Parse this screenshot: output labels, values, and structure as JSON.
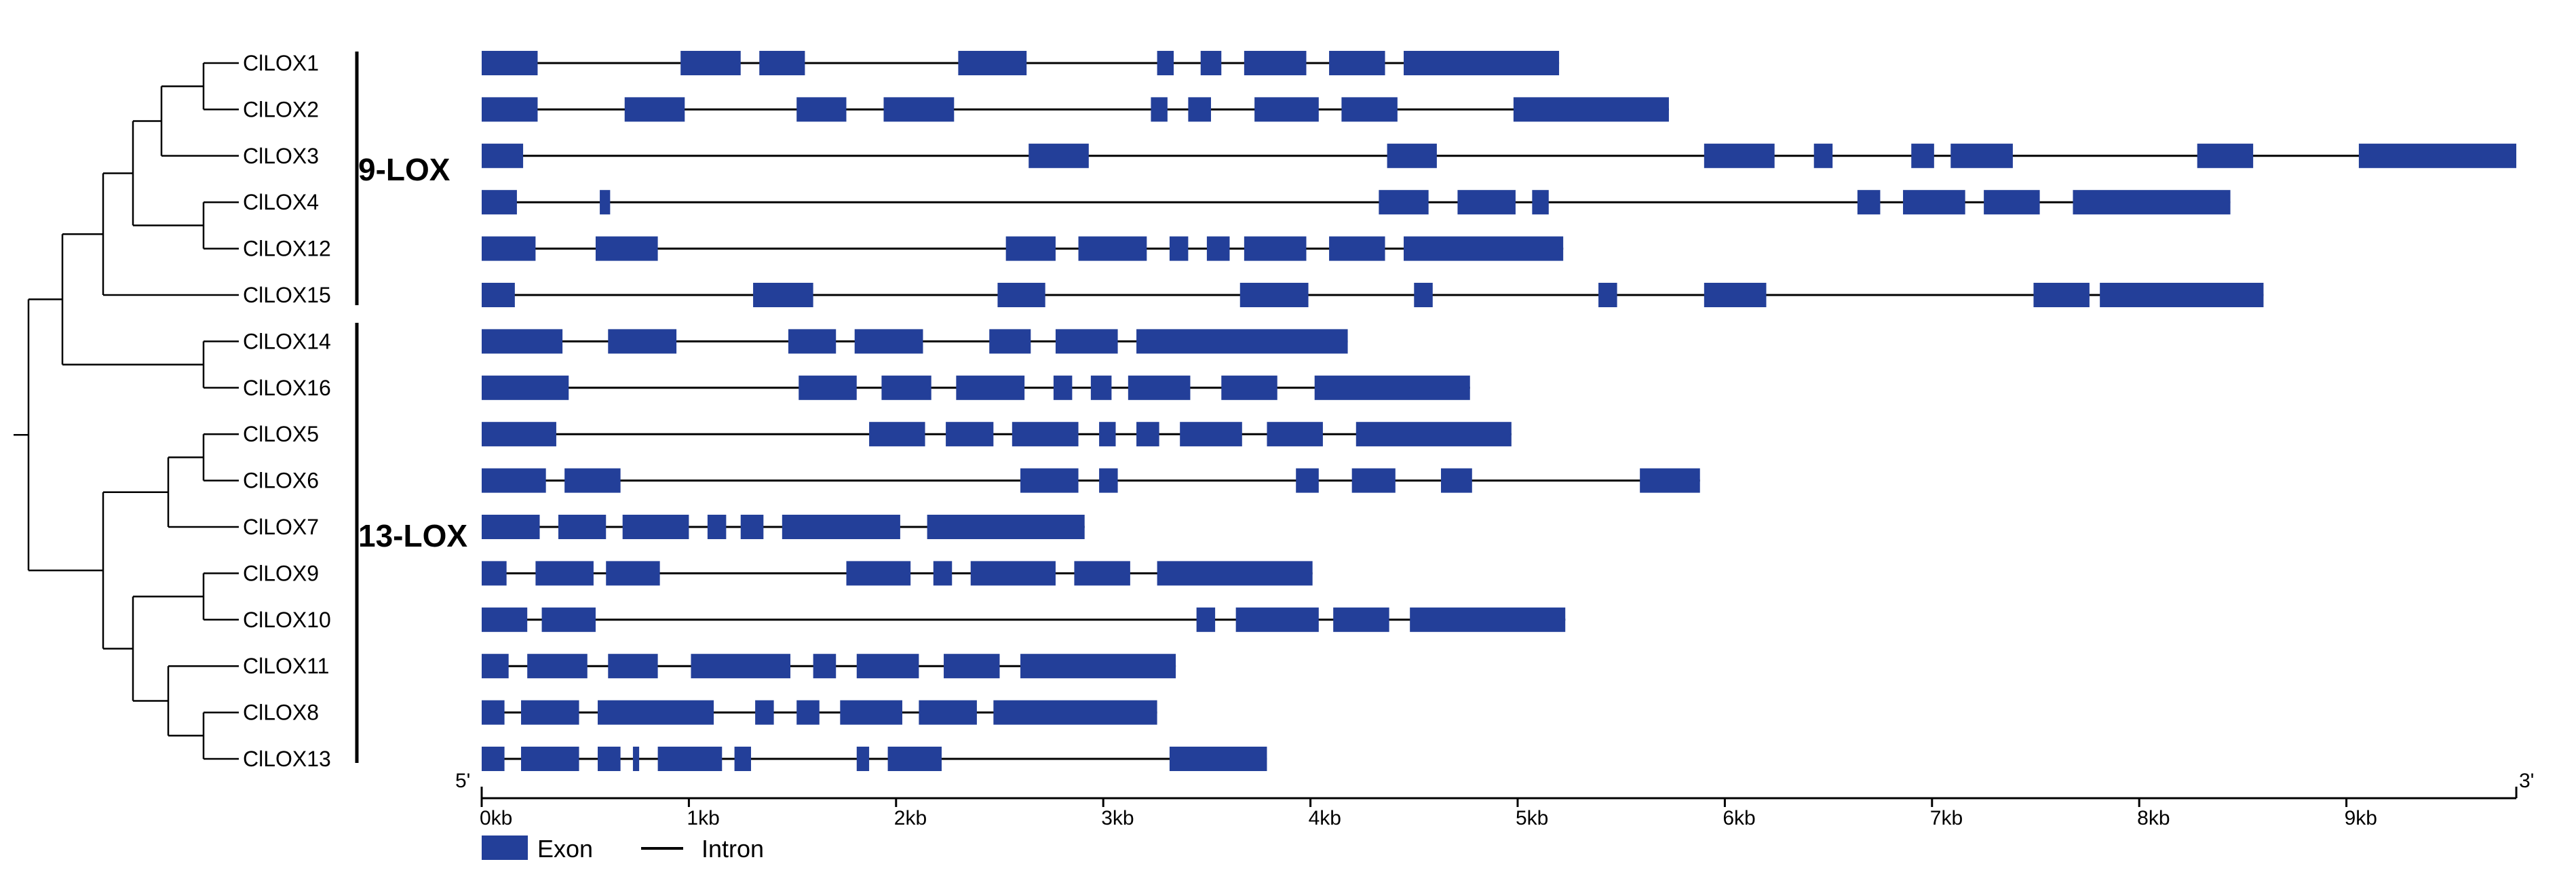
{
  "groups": [
    {
      "label": "9-LOX"
    },
    {
      "label": "13-LOX"
    }
  ],
  "genes": [
    {
      "name": "ClLOX1",
      "exons_kb": [
        [
          0,
          0.27
        ],
        [
          0.96,
          1.25
        ],
        [
          1.34,
          1.56
        ],
        [
          2.3,
          2.63
        ],
        [
          3.26,
          3.34
        ],
        [
          3.47,
          3.57
        ],
        [
          3.68,
          3.98
        ],
        [
          4.09,
          4.36
        ],
        [
          4.45,
          5.2
        ]
      ]
    },
    {
      "name": "ClLOX2",
      "exons_kb": [
        [
          0,
          0.27
        ],
        [
          0.69,
          0.98
        ],
        [
          1.52,
          1.76
        ],
        [
          1.94,
          2.28
        ],
        [
          3.23,
          3.31
        ],
        [
          3.41,
          3.52
        ],
        [
          3.73,
          4.04
        ],
        [
          4.15,
          4.42
        ],
        [
          4.98,
          5.73
        ]
      ]
    },
    {
      "name": "ClLOX3",
      "exons_kb": [
        [
          0,
          0.2
        ],
        [
          2.64,
          2.93
        ],
        [
          4.37,
          4.61
        ],
        [
          5.9,
          6.24
        ],
        [
          6.43,
          6.52
        ],
        [
          6.9,
          7.01
        ],
        [
          7.09,
          7.39
        ],
        [
          8.28,
          8.55
        ],
        [
          9.06,
          9.82
        ]
      ]
    },
    {
      "name": "ClLOX4",
      "exons_kb": [
        [
          0,
          0.17
        ],
        [
          0.57,
          0.62
        ],
        [
          4.33,
          4.57
        ],
        [
          4.71,
          4.99
        ],
        [
          5.07,
          5.15
        ],
        [
          6.64,
          6.75
        ],
        [
          6.86,
          7.16
        ],
        [
          7.25,
          7.52
        ],
        [
          7.68,
          8.44
        ]
      ]
    },
    {
      "name": "ClLOX12",
      "exons_kb": [
        [
          0,
          0.26
        ],
        [
          0.55,
          0.85
        ],
        [
          2.53,
          2.77
        ],
        [
          2.88,
          3.21
        ],
        [
          3.32,
          3.41
        ],
        [
          3.5,
          3.61
        ],
        [
          3.68,
          3.98
        ],
        [
          4.09,
          4.36
        ],
        [
          4.45,
          5.22
        ]
      ]
    },
    {
      "name": "ClLOX15",
      "exons_kb": [
        [
          0,
          0.16
        ],
        [
          1.31,
          1.6
        ],
        [
          2.49,
          2.72
        ],
        [
          3.66,
          3.99
        ],
        [
          4.5,
          4.59
        ],
        [
          5.39,
          5.48
        ],
        [
          5.9,
          6.2
        ],
        [
          7.49,
          7.76
        ],
        [
          7.81,
          8.6
        ]
      ]
    },
    {
      "name": "ClLOX14",
      "exons_kb": [
        [
          0,
          0.39
        ],
        [
          0.61,
          0.94
        ],
        [
          1.48,
          1.71
        ],
        [
          1.8,
          2.13
        ],
        [
          2.45,
          2.65
        ],
        [
          2.77,
          3.07
        ],
        [
          3.16,
          4.18
        ]
      ]
    },
    {
      "name": "ClLOX16",
      "exons_kb": [
        [
          0,
          0.42
        ],
        [
          1.53,
          1.81
        ],
        [
          1.93,
          2.17
        ],
        [
          2.29,
          2.62
        ],
        [
          2.76,
          2.85
        ],
        [
          2.94,
          3.04
        ],
        [
          3.12,
          3.42
        ],
        [
          3.57,
          3.84
        ],
        [
          4.02,
          4.77
        ]
      ]
    },
    {
      "name": "ClLOX5",
      "exons_kb": [
        [
          0,
          0.36
        ],
        [
          1.87,
          2.14
        ],
        [
          2.24,
          2.47
        ],
        [
          2.56,
          2.88
        ],
        [
          2.98,
          3.06
        ],
        [
          3.16,
          3.27
        ],
        [
          3.37,
          3.67
        ],
        [
          3.79,
          4.06
        ],
        [
          4.22,
          4.97
        ]
      ]
    },
    {
      "name": "ClLOX6",
      "exons_kb": [
        [
          0,
          0.31
        ],
        [
          0.4,
          0.67
        ],
        [
          2.6,
          2.88
        ],
        [
          2.98,
          3.07
        ],
        [
          3.93,
          4.04
        ],
        [
          4.2,
          4.41
        ],
        [
          4.63,
          4.78
        ],
        [
          5.59,
          5.88
        ]
      ]
    },
    {
      "name": "ClLOX7",
      "exons_kb": [
        [
          0,
          0.28
        ],
        [
          0.37,
          0.6
        ],
        [
          0.68,
          1.0
        ],
        [
          1.09,
          1.18
        ],
        [
          1.25,
          1.36
        ],
        [
          1.45,
          2.02
        ],
        [
          2.15,
          2.91
        ]
      ]
    },
    {
      "name": "ClLOX9",
      "exons_kb": [
        [
          0,
          0.12
        ],
        [
          0.26,
          0.54
        ],
        [
          0.6,
          0.86
        ],
        [
          1.76,
          2.07
        ],
        [
          2.18,
          2.27
        ],
        [
          2.36,
          2.77
        ],
        [
          2.86,
          3.13
        ],
        [
          3.26,
          4.01
        ]
      ]
    },
    {
      "name": "ClLOX10",
      "exons_kb": [
        [
          0,
          0.22
        ],
        [
          0.29,
          0.55
        ],
        [
          3.45,
          3.54
        ],
        [
          3.64,
          4.04
        ],
        [
          4.11,
          4.38
        ],
        [
          4.48,
          5.23
        ]
      ]
    },
    {
      "name": "ClLOX11",
      "exons_kb": [
        [
          0,
          0.13
        ],
        [
          0.22,
          0.51
        ],
        [
          0.61,
          0.85
        ],
        [
          1.01,
          1.49
        ],
        [
          1.6,
          1.71
        ],
        [
          1.81,
          2.11
        ],
        [
          2.23,
          2.5
        ],
        [
          2.6,
          3.35
        ]
      ]
    },
    {
      "name": "ClLOX8",
      "exons_kb": [
        [
          0,
          0.11
        ],
        [
          0.19,
          0.47
        ],
        [
          0.56,
          1.12
        ],
        [
          1.32,
          1.41
        ],
        [
          1.52,
          1.63
        ],
        [
          1.73,
          2.03
        ],
        [
          2.11,
          2.39
        ],
        [
          2.47,
          3.26
        ]
      ]
    },
    {
      "name": "ClLOX13",
      "exons_kb": [
        [
          0,
          0.11
        ],
        [
          0.19,
          0.47
        ],
        [
          0.56,
          0.67
        ],
        [
          0.73,
          0.76
        ],
        [
          0.85,
          1.16
        ],
        [
          1.22,
          1.3
        ],
        [
          1.81,
          1.87
        ],
        [
          1.96,
          2.22
        ],
        [
          3.32,
          3.79
        ]
      ]
    }
  ],
  "axis": {
    "start_label": "5'",
    "end_label": "3'",
    "ticks": [
      "0kb",
      "1kb",
      "2kb",
      "3kb",
      "4kb",
      "5kb",
      "6kb",
      "7kb",
      "8kb",
      "9kb"
    ],
    "max_kb": 9.82
  },
  "legend": {
    "exon_label": "Exon",
    "intron_label": "Intron"
  },
  "colors": {
    "exon": "#233f99",
    "intron": "#000000",
    "tree": "#000000"
  }
}
